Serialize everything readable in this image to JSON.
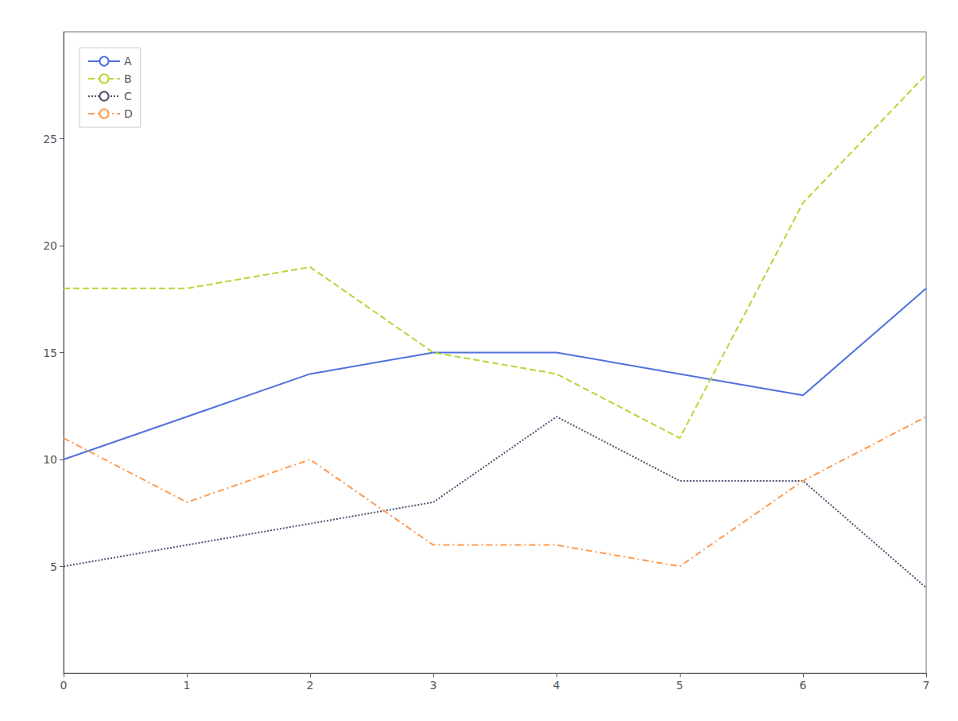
{
  "chart_data": {
    "type": "line",
    "x": [
      0,
      1,
      2,
      3,
      4,
      5,
      6,
      7
    ],
    "series": [
      {
        "name": "A",
        "values": [
          10,
          12,
          14,
          15,
          15,
          14,
          13,
          18
        ],
        "line_style": "solid"
      },
      {
        "name": "B",
        "values": [
          18,
          18,
          19,
          15,
          14,
          11,
          22,
          28
        ],
        "line_style": "dashed"
      },
      {
        "name": "C",
        "values": [
          5,
          6,
          7,
          8,
          12,
          9,
          9,
          4
        ],
        "line_style": "dotted"
      },
      {
        "name": "D",
        "values": [
          11,
          8,
          10,
          6,
          6,
          5,
          9,
          12
        ],
        "line_style": "dashdot"
      }
    ],
    "xlim": [
      0,
      7
    ],
    "xticks": [
      0,
      1,
      2,
      3,
      4,
      5,
      6,
      7
    ],
    "ylim": [
      0,
      30
    ],
    "yticks": [
      5,
      10,
      15,
      20,
      25
    ],
    "grid": false,
    "legend": "upper left"
  }
}
